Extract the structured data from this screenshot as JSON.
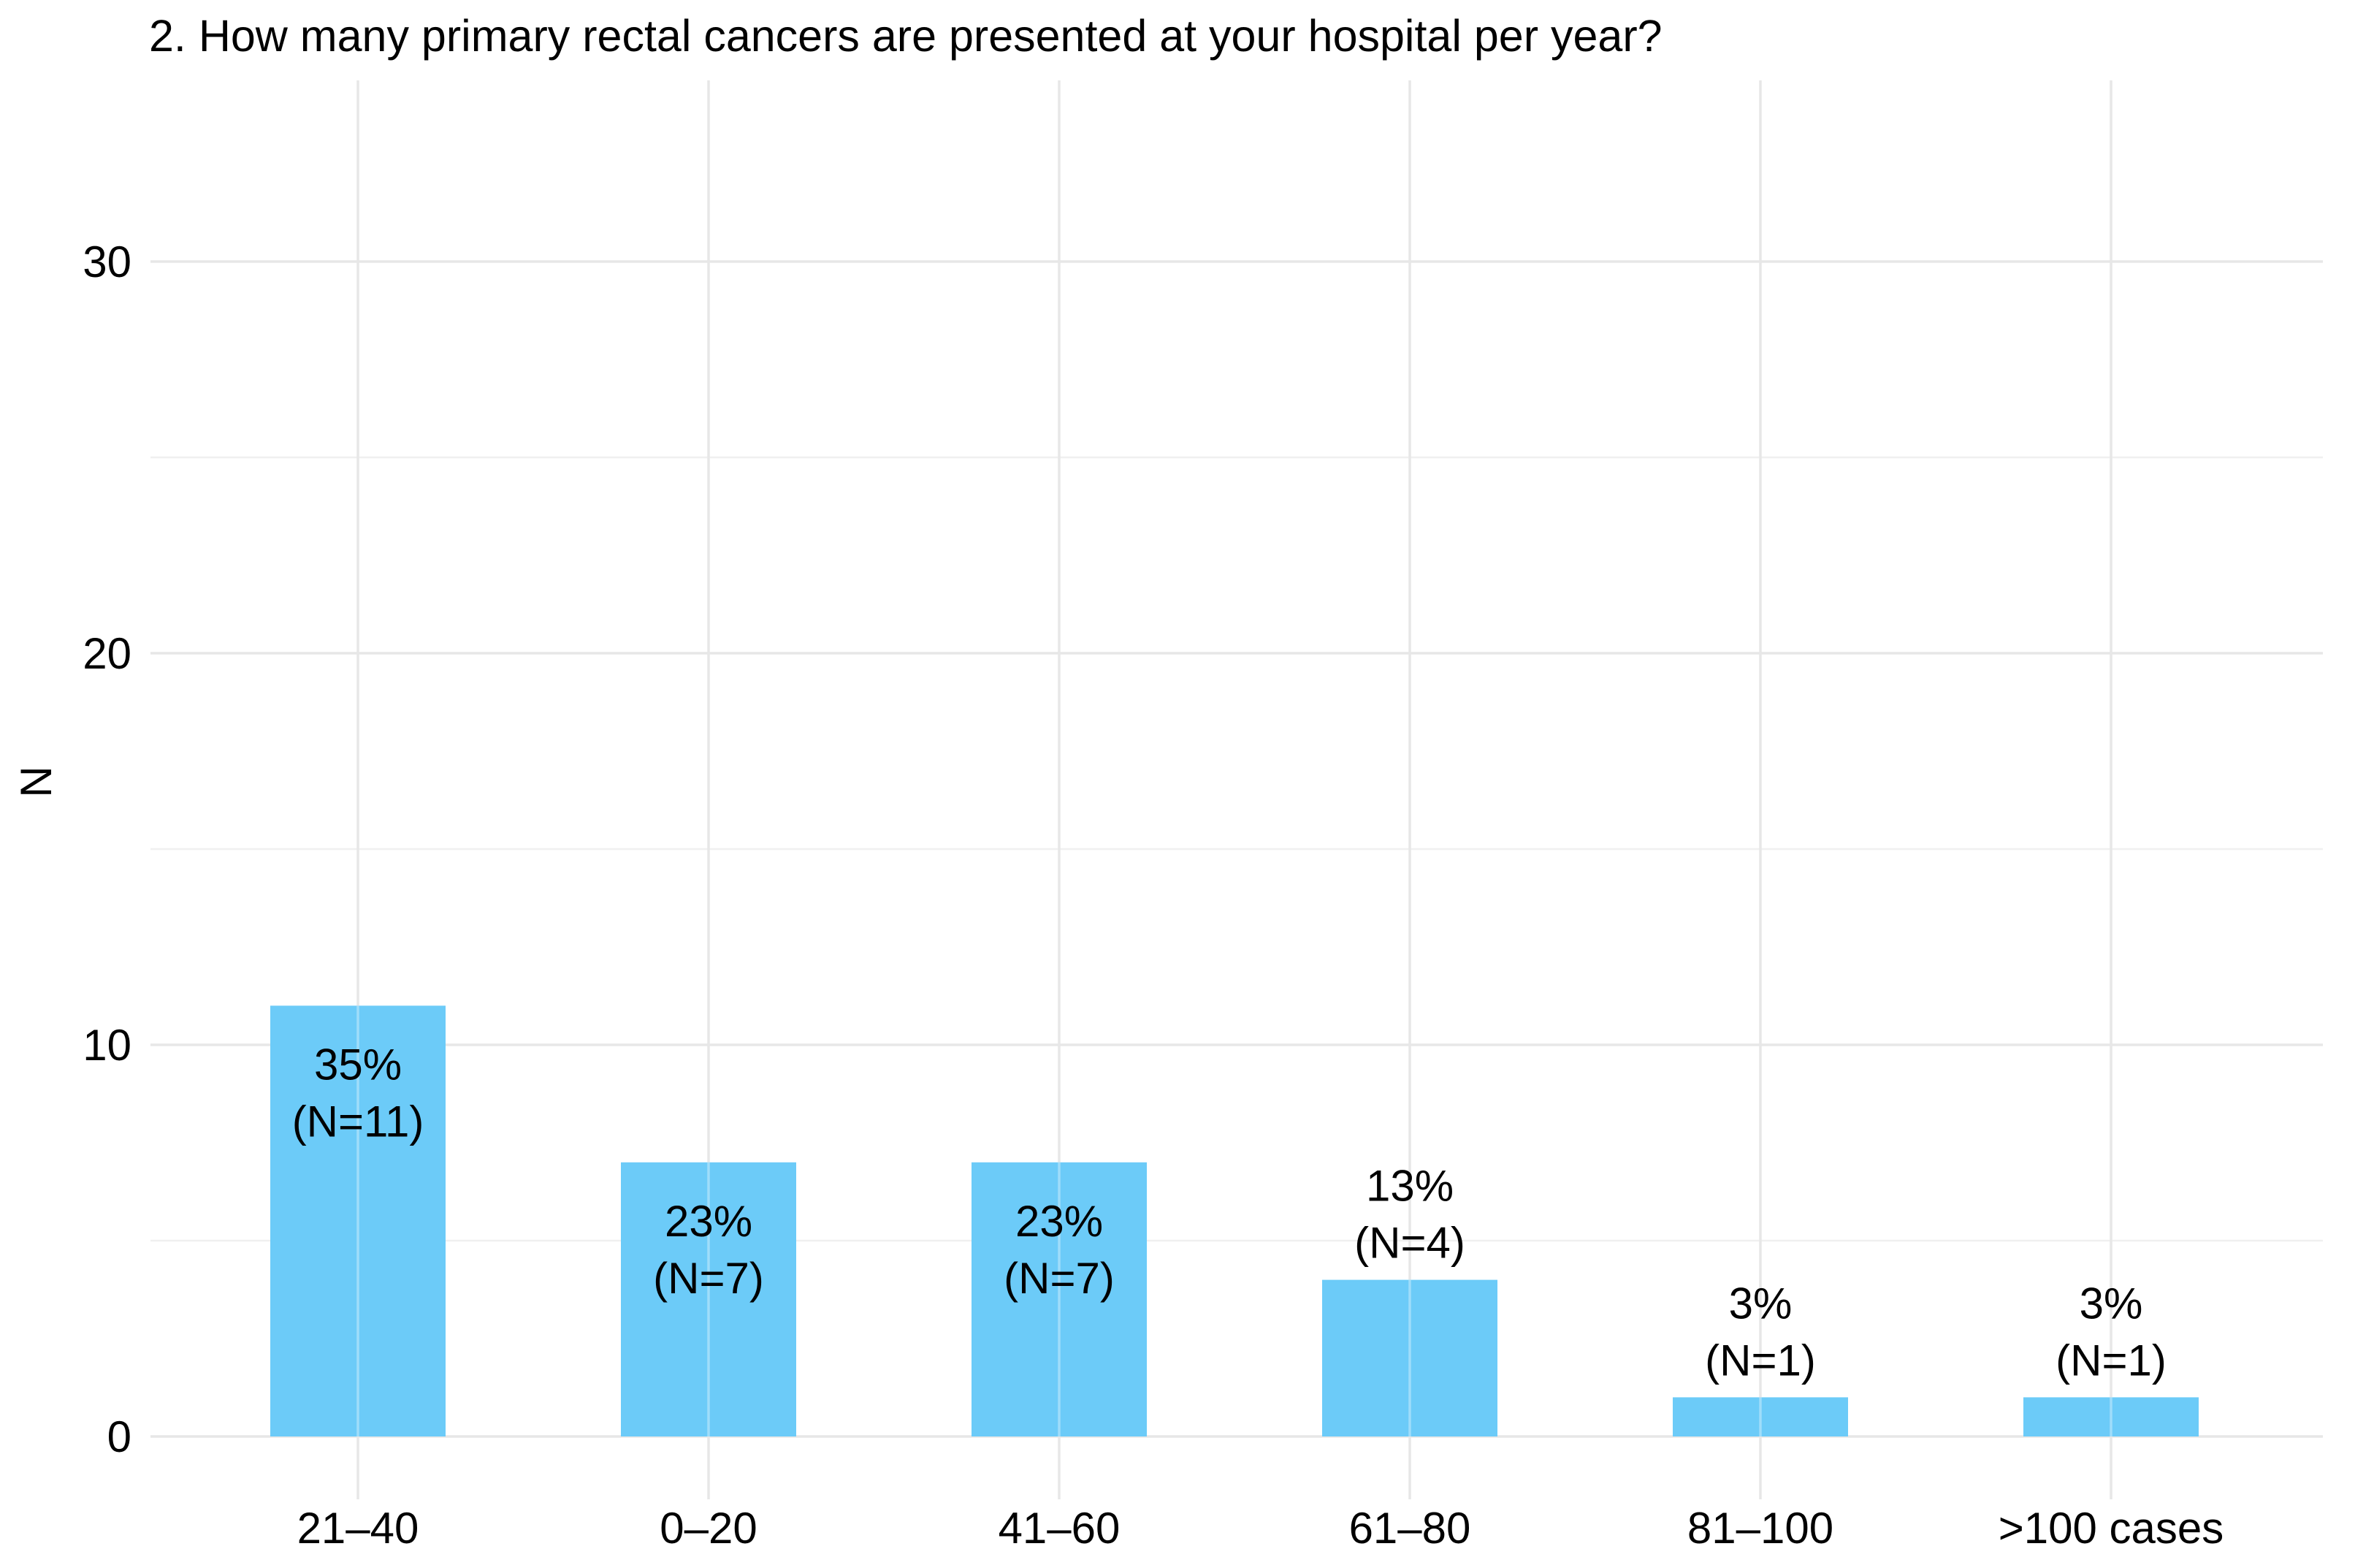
{
  "chart_data": {
    "type": "bar",
    "title": "2. How many primary rectal cancers are presented at your hospital per year?",
    "xlabel": "",
    "ylabel": "N",
    "categories": [
      "21–40",
      "0–20",
      "41–60",
      "61–80",
      "81–100",
      ">100 cases"
    ],
    "values": [
      11,
      7,
      7,
      4,
      1,
      1
    ],
    "bar_labels": [
      [
        "35%",
        "(N=11)"
      ],
      [
        "23%",
        "(N=7)"
      ],
      [
        "23%",
        "(N=7)"
      ],
      [
        "13%",
        "(N=4)"
      ],
      [
        "3%",
        "(N=1)"
      ],
      [
        "3%",
        "(N=1)"
      ]
    ],
    "yticks": [
      0,
      10,
      20,
      30
    ],
    "yticks_minor": [
      5,
      15,
      25
    ],
    "ylim": [
      0,
      34
    ],
    "grid": "horizontal major+minor, vertical line at each category",
    "legend_position": "none"
  },
  "colors": {
    "bar_fill": "#6CCBF8",
    "grid_major": "#E7E7E7",
    "grid_minor": "#F0F0F0",
    "grid_vertical": "#E7E7E7",
    "text": "#000000",
    "background": "#FFFFFF"
  }
}
